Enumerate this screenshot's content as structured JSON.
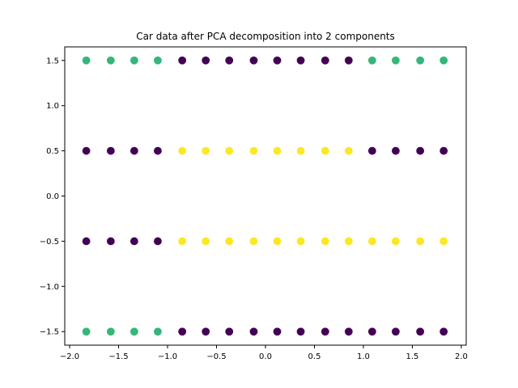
{
  "chart_data": {
    "type": "scatter",
    "title": "Car data after PCA decomposition into 2 components",
    "xlabel": "",
    "ylabel": "",
    "xlim": [
      -2.05,
      2.05
    ],
    "ylim": [
      -1.65,
      1.65
    ],
    "grid": false,
    "x_ticks": [
      -2.0,
      -1.5,
      -1.0,
      -0.5,
      0.0,
      0.5,
      1.0,
      1.5,
      2.0
    ],
    "x_tick_labels": [
      "−2.0",
      "−1.5",
      "−1.0",
      "−0.5",
      "0.0",
      "0.5",
      "1.0",
      "1.5",
      "2.0"
    ],
    "y_ticks": [
      -1.5,
      -1.0,
      -0.5,
      0.0,
      0.5,
      1.0,
      1.5
    ],
    "y_tick_labels": [
      "−1.5",
      "−1.0",
      "−0.5",
      "0.0",
      "0.5",
      "1.0",
      "1.5"
    ],
    "x_levels": [
      -1.83,
      -1.58,
      -1.34,
      -1.1,
      -0.85,
      -0.61,
      -0.37,
      -0.12,
      0.12,
      0.36,
      0.61,
      0.85,
      1.09,
      1.33,
      1.58,
      1.82
    ],
    "colors": {
      "purple": "#440154",
      "green": "#35b779",
      "yellow": "#fde725"
    },
    "rows": [
      {
        "y": 1.5,
        "colors": [
          "green",
          "green",
          "green",
          "green",
          "purple",
          "purple",
          "purple",
          "purple",
          "purple",
          "purple",
          "purple",
          "purple",
          "green",
          "green",
          "green",
          "green"
        ]
      },
      {
        "y": 0.5,
        "colors": [
          "purple",
          "purple",
          "purple",
          "purple",
          "yellow",
          "yellow",
          "yellow",
          "yellow",
          "yellow",
          "yellow",
          "yellow",
          "yellow",
          "purple",
          "purple",
          "purple",
          "purple"
        ]
      },
      {
        "y": -0.5,
        "colors": [
          "purple",
          "purple",
          "purple",
          "purple",
          "yellow",
          "yellow",
          "yellow",
          "yellow",
          "yellow",
          "yellow",
          "yellow",
          "yellow",
          "yellow",
          "yellow",
          "yellow",
          "yellow"
        ]
      },
      {
        "y": -1.5,
        "colors": [
          "green",
          "green",
          "green",
          "green",
          "purple",
          "purple",
          "purple",
          "purple",
          "purple",
          "purple",
          "purple",
          "purple",
          "purple",
          "purple",
          "purple",
          "purple"
        ]
      }
    ]
  }
}
